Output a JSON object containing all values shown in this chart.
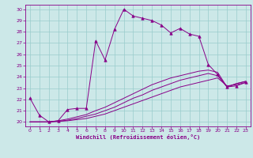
{
  "xlabel": "Windchill (Refroidissement éolien,°C)",
  "bg_color": "#cce8e8",
  "line_color": "#880088",
  "grid_color": "#99cccc",
  "xlim": [
    -0.5,
    23.5
  ],
  "ylim": [
    19.6,
    30.4
  ],
  "yticks": [
    20,
    21,
    22,
    23,
    24,
    25,
    26,
    27,
    28,
    29,
    30
  ],
  "xticks": [
    0,
    1,
    2,
    3,
    4,
    5,
    6,
    7,
    8,
    9,
    10,
    11,
    12,
    13,
    14,
    15,
    16,
    17,
    18,
    19,
    20,
    21,
    22,
    23
  ],
  "line1_x": [
    0,
    1,
    2,
    3,
    4,
    5,
    6,
    7,
    8,
    9,
    10,
    11,
    12,
    13,
    14,
    15,
    16,
    17,
    18,
    19,
    20,
    21,
    22,
    23
  ],
  "line1_y": [
    22.1,
    20.6,
    20.0,
    20.1,
    21.1,
    21.2,
    21.2,
    27.2,
    25.5,
    28.2,
    30.0,
    29.4,
    29.2,
    29.0,
    28.6,
    27.9,
    28.3,
    27.8,
    27.6,
    25.1,
    24.2,
    23.1,
    23.2,
    23.5
  ],
  "line2_x": [
    0,
    1,
    2,
    3,
    4,
    5,
    6,
    7,
    8,
    9,
    10,
    11,
    12,
    13,
    14,
    15,
    16,
    17,
    18,
    19,
    20,
    21,
    22,
    23
  ],
  "line2_y": [
    20.0,
    20.0,
    20.0,
    20.05,
    20.1,
    20.2,
    20.3,
    20.5,
    20.7,
    21.0,
    21.3,
    21.6,
    21.9,
    22.2,
    22.5,
    22.8,
    23.1,
    23.3,
    23.5,
    23.7,
    23.9,
    23.2,
    23.3,
    23.5
  ],
  "line3_x": [
    0,
    1,
    2,
    3,
    4,
    5,
    6,
    7,
    8,
    9,
    10,
    11,
    12,
    13,
    14,
    15,
    16,
    17,
    18,
    19,
    20,
    21,
    22,
    23
  ],
  "line3_y": [
    20.0,
    20.0,
    20.0,
    20.05,
    20.15,
    20.3,
    20.5,
    20.7,
    21.0,
    21.3,
    21.7,
    22.1,
    22.4,
    22.8,
    23.1,
    23.4,
    23.7,
    23.9,
    24.1,
    24.3,
    24.1,
    23.1,
    23.4,
    23.6
  ],
  "line4_x": [
    0,
    1,
    2,
    3,
    4,
    5,
    6,
    7,
    8,
    9,
    10,
    11,
    12,
    13,
    14,
    15,
    16,
    17,
    18,
    19,
    20,
    21,
    22,
    23
  ],
  "line4_y": [
    20.0,
    20.0,
    20.0,
    20.1,
    20.25,
    20.45,
    20.65,
    21.0,
    21.3,
    21.7,
    22.1,
    22.5,
    22.9,
    23.3,
    23.6,
    23.9,
    24.1,
    24.3,
    24.5,
    24.6,
    24.4,
    23.1,
    23.4,
    23.6
  ]
}
